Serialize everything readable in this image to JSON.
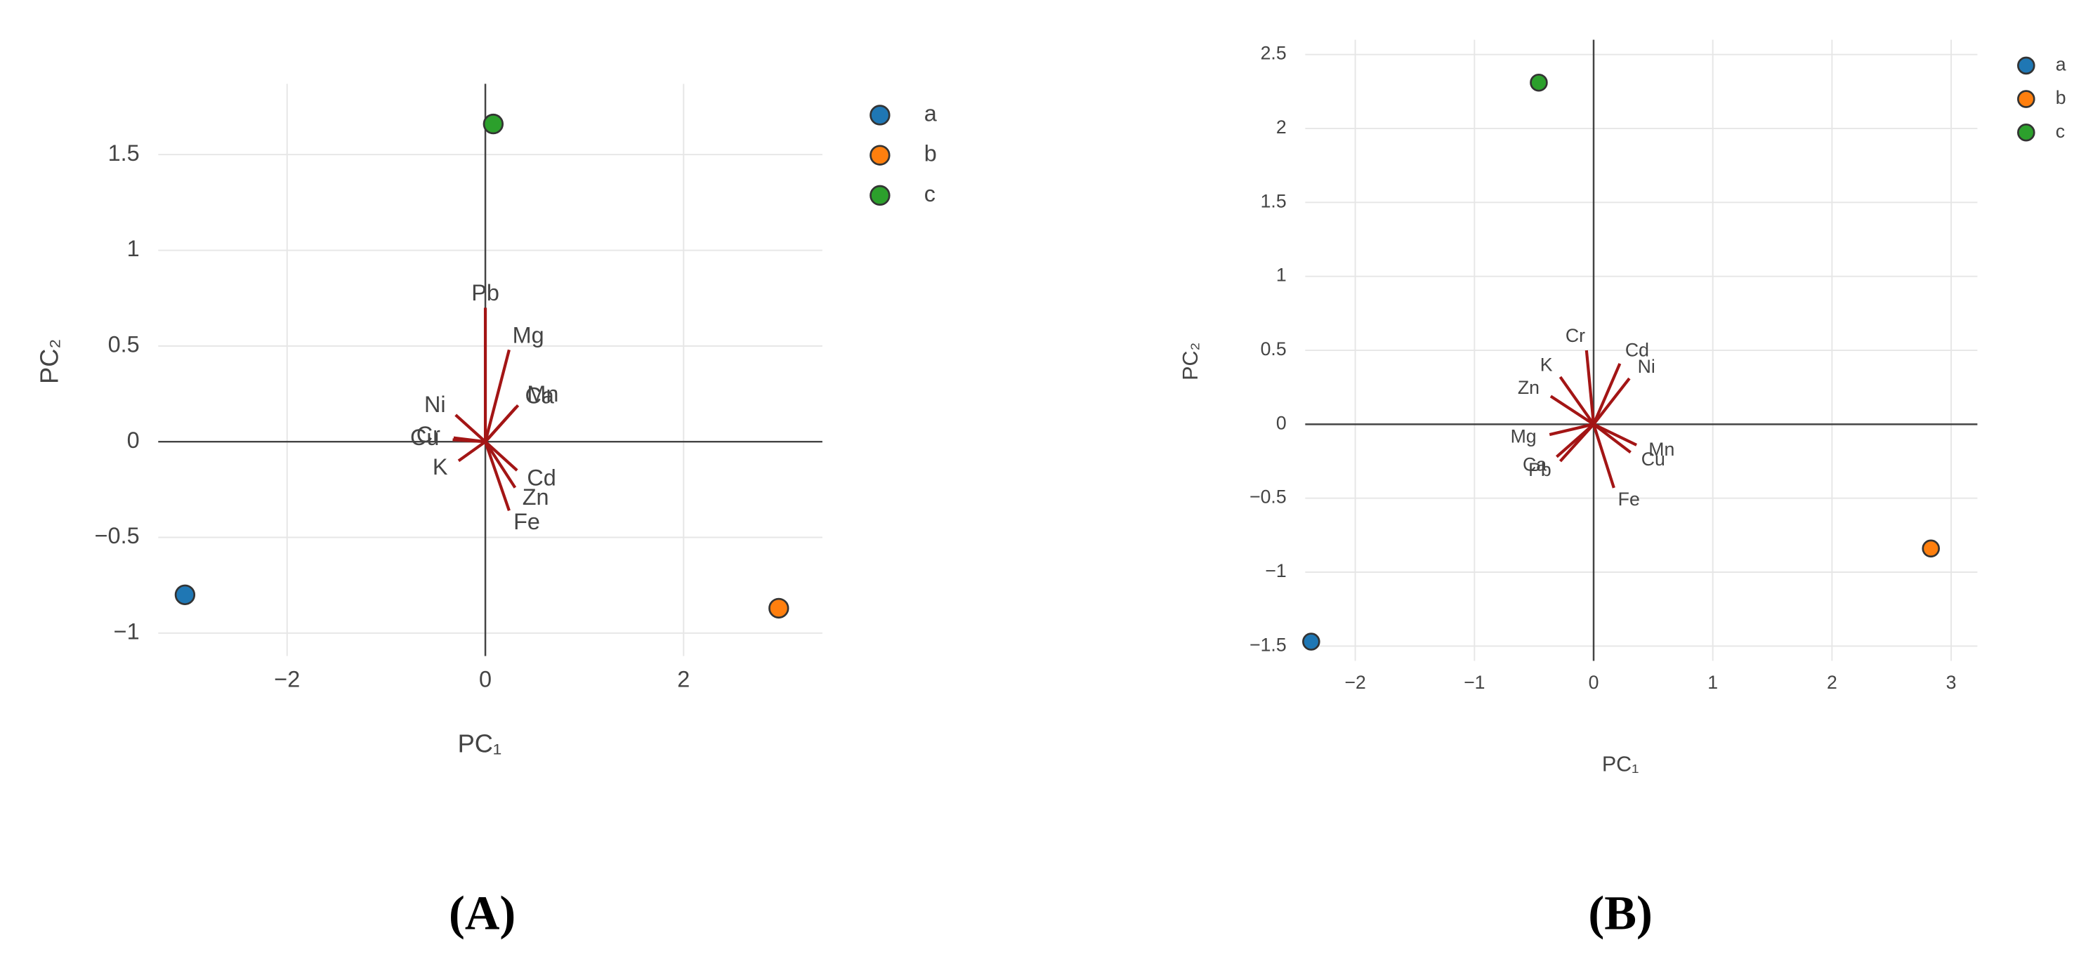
{
  "chart_data": [
    {
      "type": "biplot",
      "label": "(A)",
      "xlabel": "PC₁",
      "ylabel": "PC₂",
      "xlim": [
        -3.3,
        3.4
      ],
      "ylim": [
        -1.12,
        1.87
      ],
      "xticks": [
        {
          "value": -2,
          "label": "−2"
        },
        0,
        2
      ],
      "yticks": [
        {
          "value": -1,
          "label": "−1"
        },
        {
          "value": -0.5,
          "label": "−0.5"
        },
        0,
        0.5,
        1,
        1.5
      ],
      "grid": true,
      "series": [
        {
          "name": "a",
          "color": "#1f77b4",
          "x": [
            -3.03
          ],
          "values": [
            -0.8
          ]
        },
        {
          "name": "b",
          "color": "#ff7f0e",
          "x": [
            2.96
          ],
          "values": [
            -0.87
          ]
        },
        {
          "name": "c",
          "color": "#2ca02c",
          "x": [
            0.08
          ],
          "values": [
            1.66
          ]
        }
      ],
      "loadings": {
        "color": "#a31515",
        "labels": [
          "Pb",
          "Mg",
          "Ca",
          "Mn",
          "Ni",
          "Cr",
          "Cu",
          "K",
          "Cd",
          "Zn",
          "Fe"
        ],
        "x": [
          0.0,
          0.24,
          0.31,
          0.33,
          -0.3,
          -0.32,
          -0.33,
          -0.27,
          0.32,
          0.3,
          0.24
        ],
        "values": [
          0.7,
          0.48,
          0.18,
          0.19,
          0.14,
          0.02,
          0.01,
          -0.1,
          -0.15,
          -0.24,
          -0.36
        ]
      }
    },
    {
      "type": "biplot",
      "label": "(B)",
      "xlabel": "PC₁",
      "ylabel": "PC₂",
      "xlim": [
        -2.42,
        3.22
      ],
      "ylim": [
        -1.6,
        2.6
      ],
      "xticks": [
        {
          "value": -2,
          "label": "−2"
        },
        {
          "value": -1,
          "label": "−1"
        },
        0,
        1,
        2,
        3
      ],
      "yticks": [
        {
          "value": -1.5,
          "label": "−1.5"
        },
        {
          "value": -1,
          "label": "−1"
        },
        {
          "value": -0.5,
          "label": "−0.5"
        },
        0,
        0.5,
        1,
        1.5,
        2,
        2.5
      ],
      "grid": true,
      "series": [
        {
          "name": "a",
          "color": "#1f77b4",
          "x": [
            -2.37
          ],
          "values": [
            -1.47
          ]
        },
        {
          "name": "b",
          "color": "#ff7f0e",
          "x": [
            2.83
          ],
          "values": [
            -0.84
          ]
        },
        {
          "name": "c",
          "color": "#2ca02c",
          "x": [
            -0.46
          ],
          "values": [
            2.31
          ]
        }
      ],
      "loadings": {
        "color": "#a31515",
        "labels": [
          "Cr",
          "Cd",
          "Ni",
          "K",
          "Zn",
          "Mg",
          "Ca",
          "Pb",
          "Mn",
          "Cu",
          "Fe"
        ],
        "x": [
          -0.06,
          0.22,
          0.3,
          -0.28,
          -0.36,
          -0.37,
          -0.31,
          -0.28,
          0.36,
          0.31,
          0.17
        ],
        "values": [
          0.5,
          0.41,
          0.31,
          0.32,
          0.19,
          -0.07,
          -0.22,
          -0.25,
          -0.14,
          -0.19,
          -0.43
        ]
      }
    }
  ]
}
